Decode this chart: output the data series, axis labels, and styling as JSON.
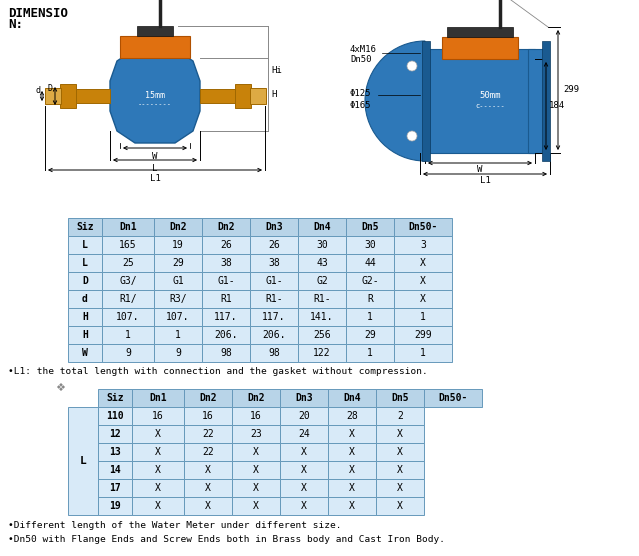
{
  "title_line1": "DIMENSIO",
  "title_line2": "N:",
  "table1_header": [
    "Siz",
    "Dn1",
    "Dn2",
    "Dn2",
    "Dn3",
    "Dn4",
    "Dn5",
    "Dn50-"
  ],
  "table1_rows": [
    [
      "L",
      "165",
      "19",
      "26",
      "26",
      "30",
      "30",
      "3"
    ],
    [
      "L",
      "25",
      "29",
      "38",
      "38",
      "43",
      "44",
      "X"
    ],
    [
      "D",
      "G3/",
      "G1",
      "G1-",
      "G1-",
      "G2",
      "G2-",
      "X"
    ],
    [
      "d",
      "R1/",
      "R3/",
      "R1",
      "R1-",
      "R1-",
      "R",
      "X"
    ],
    [
      "H",
      "107.",
      "107.",
      "117.",
      "117.",
      "141.",
      "1",
      "1"
    ],
    [
      "H",
      "1",
      "1",
      "206.",
      "206.",
      "256",
      "29",
      "299"
    ],
    [
      "W",
      "9",
      "9",
      "98",
      "98",
      "122",
      "1",
      "1"
    ]
  ],
  "note1": "•L1: the total length with connection and the gasket without compression.",
  "table2_header": [
    "Siz",
    "Dn1",
    "Dn2",
    "Dn2",
    "Dn3",
    "Dn4",
    "Dn5",
    "Dn50-"
  ],
  "table2_col1": "L",
  "table2_rows": [
    [
      "110",
      "16",
      "16",
      "16",
      "20",
      "28",
      "2"
    ],
    [
      "12",
      "X",
      "22",
      "23",
      "24",
      "X",
      "X"
    ],
    [
      "13",
      "X",
      "22",
      "X",
      "X",
      "X",
      "X"
    ],
    [
      "14",
      "X",
      "X",
      "X",
      "X",
      "X",
      "X"
    ],
    [
      "17",
      "X",
      "X",
      "X",
      "X",
      "X",
      "X"
    ],
    [
      "19",
      "X",
      "X",
      "X",
      "X",
      "X",
      "X"
    ]
  ],
  "note2a": "•Different length of the Water Meter under different size.",
  "note2b": "•Dn50 with Flange Ends and Screw Ends both in Brass body and Cast Iron Body.",
  "header_bg": "#b8d4e8",
  "row_bg": "#d8eaf8",
  "border_color": "#6699bb",
  "body_blue": "#2e78b8",
  "body_dark_blue": "#1a5a90",
  "orange": "#e07010",
  "dark_orange": "#b05000",
  "brass": "#c8820a",
  "dark_brass": "#a06800",
  "antenna_color": "#222222",
  "dim_line_color": "#444444",
  "bg_color": "#ffffff"
}
